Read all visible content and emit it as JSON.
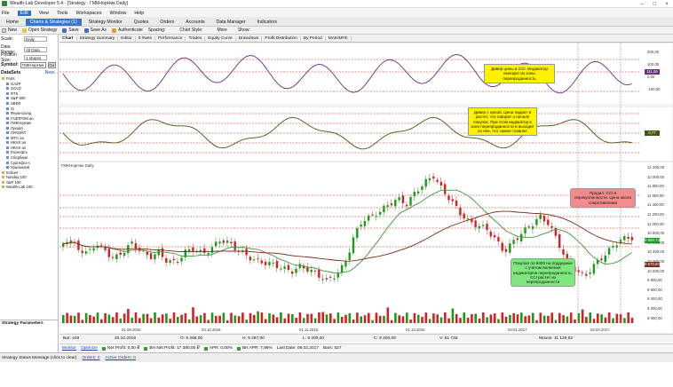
{
  "window": {
    "title": "Wealth-Lab Developer 5.4 - [Strategy - ГМКНорНик Daily]",
    "controls": [
      "–",
      "□",
      "×"
    ]
  },
  "menu": {
    "items": [
      "File",
      "Edit",
      "View",
      "Tools",
      "Workspaces",
      "Window",
      "Help"
    ],
    "active": "Edit"
  },
  "tabs": {
    "items": [
      "Home",
      "Charts & Strategies (1)",
      "Strategy Monitor",
      "Quotes",
      "Orders",
      "Accounts",
      "Data Manager",
      "Indicators"
    ],
    "active": "Charts & Strategies (1)"
  },
  "toolbar": {
    "items": [
      "New",
      "Open Strategy",
      "Save",
      "Save As",
      "Authenticate",
      "Spacing:",
      "Chart Style:",
      "More",
      "Show:"
    ]
  },
  "left": {
    "scale_label": "Scale:",
    "scale_value": "Daily",
    "range_label": "Data Range:",
    "range_value": "All Data",
    "pos_label": "Position Size:",
    "pos_value": "1 shares",
    "symbol_label": "Symbol:",
    "symbol_value": "ГМКНорНик",
    "go": "Go",
    "datasets_label": "DataSets",
    "datasets_link": "New...",
    "items": [
      "Forts",
      "GAZP",
      "GOLD",
      "RTS",
      "S&P 500",
      "SBER",
      "Si",
      "Ферм-сколд",
      "ГАЗПРОМ ао",
      "ГМКНорНик",
      "Лукойл",
      "ЛУКОЙЛ",
      "МТС ао",
      "НКНХ ао",
      "НКНХ ап",
      "Роснефть",
      "Сбербанк",
      "Сургнфгз-п",
      "Уралкалий",
      "Indices",
      "Nasdaq 100",
      "S&P 100",
      "Wealth-Lab 100"
    ],
    "strategy_vars": "Strategy Parameters"
  },
  "chart_tabs": {
    "items": [
      "Chart",
      "Strategy Summary",
      "Editor",
      "0 /Nets",
      "Performance",
      "Trades",
      "Equity Curve",
      "Drawdown",
      "Profit Distribution",
      "By Period",
      "MAE/MFE"
    ],
    "active": "Chart"
  },
  "chart": {
    "symbol_label": "ГМКНорНик Daily",
    "price_ticks": [
      "12 200,00",
      "12 000,00",
      "11 800,00",
      "11 600,00",
      "11 400,00",
      "11 200,00",
      "11 000,00",
      "10 800,00",
      "10 600,00",
      "10 400,00",
      "10 200,00",
      "10 000,00",
      "9 800,00",
      "9 600,00",
      "9 400,00",
      "9 200,00",
      "9 000,00"
    ],
    "price_tag_last": "9 860,74",
    "price_tag_ma": "9 570,84",
    "cci_ticks": [
      "200,00",
      "100,00",
      "0,00",
      "-100,00"
    ],
    "cci_tag": "111,36",
    "osc_tag": "0,77",
    "date_labels": [
      "01.08.2016",
      "03.10.2016",
      "01.11.2016",
      "01.12.2016",
      "03.01.2017",
      "03.02.2017"
    ],
    "annotations": {
      "a1": "Дивер цены и ССI. Индикатор выходит из зоны перепроданность",
      "a2": "Дивер с ценой. Цена падает в растет, что говорит о начале покупок. При этом индикатор в зоне перепроданности и выходит из нее, что самое главное",
      "a3": "Продал. ССI в перекупленности. Цена около сопротивления",
      "a4": "Покупал по 9400 на поддержке с учетом волнения индикаторов перепроданность, ССI растет из перепроданности"
    }
  },
  "status1": {
    "bar": "Bar: 449",
    "date": "20.10.2016",
    "open": "O: 9 268,00",
    "high": "H: 9 297,00",
    "low": "L: 9 200,00",
    "close": "C: 9 200,00",
    "volume": "V: 61 736",
    "mouse": "Mouse: 11 139,62"
  },
  "status2": {
    "monitor": "Monitor",
    "optimize": "Optimize",
    "net_profit": "Net Profit: 0,00 ₽",
    "bh_profit": "BH Net Profit: 17 380,00 ₽",
    "apr": "APR: 0,00%",
    "bh_apr": "BH APR: 7,96%",
    "last_date": "Last Date: 08.02.2017",
    "bars": "Bars: 527"
  },
  "bottom": {
    "status": "Strategy Status Message (click to clear)",
    "orders": "Orders: 0",
    "active_orders": "Active Orders: 0"
  },
  "colors": {
    "cci": "#6b2d82",
    "osc": "#3d5a10",
    "ma_short": "#3a9a3a",
    "ma_long": "#7a2a1a",
    "up": "#1a9a1a",
    "down": "#d42020",
    "dash": "#c02020",
    "ann_yellow": "#fff200",
    "ann_red": "#f28c8c",
    "ann_green": "#7ee77e"
  }
}
